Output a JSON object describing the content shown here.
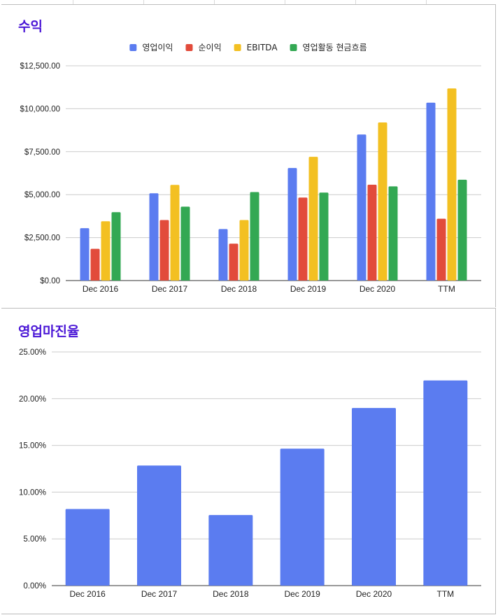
{
  "chart_data": [
    {
      "type": "bar",
      "title": "수익",
      "xlabel": "",
      "ylabel": "",
      "categories": [
        "Dec 2016",
        "Dec 2017",
        "Dec 2018",
        "Dec 2019",
        "Dec 2020",
        "TTM"
      ],
      "series": [
        {
          "name": "영업이익",
          "color": "#5b7cf0",
          "values": [
            3050,
            5080,
            3000,
            6550,
            8500,
            10350
          ]
        },
        {
          "name": "순이익",
          "color": "#e24b3b",
          "values": [
            1850,
            3520,
            2150,
            4830,
            5580,
            3600
          ]
        },
        {
          "name": "EBITDA",
          "color": "#f3c022",
          "values": [
            3450,
            5570,
            3520,
            7200,
            9200,
            11180
          ]
        },
        {
          "name": "영업활동 현금흐름",
          "color": "#33a853",
          "values": [
            3980,
            4300,
            5150,
            5120,
            5480,
            5870
          ]
        }
      ],
      "ylim": [
        0,
        12500
      ],
      "yticks": [
        "$0.00",
        "$2,500.00",
        "$5,000.00",
        "$7,500.00",
        "$10,000.00",
        "$12,500.00"
      ],
      "grid": true,
      "legend": "top-center"
    },
    {
      "type": "bar",
      "title": "영업마진율",
      "xlabel": "",
      "ylabel": "",
      "categories": [
        "Dec 2016",
        "Dec 2017",
        "Dec 2018",
        "Dec 2019",
        "Dec 2020",
        "TTM"
      ],
      "series": [
        {
          "color": "#5b7cf0",
          "values": [
            8.2,
            12.85,
            7.55,
            14.65,
            19.0,
            21.95
          ]
        }
      ],
      "ylim": [
        0,
        25
      ],
      "yticks": [
        "0.00%",
        "5.00%",
        "10.00%",
        "15.00%",
        "20.00%",
        "25.00%"
      ],
      "grid": true,
      "legend": "none"
    }
  ],
  "colors": {
    "title": "#4a16d6",
    "gridline": "#cccccc",
    "axis": "#333333"
  }
}
